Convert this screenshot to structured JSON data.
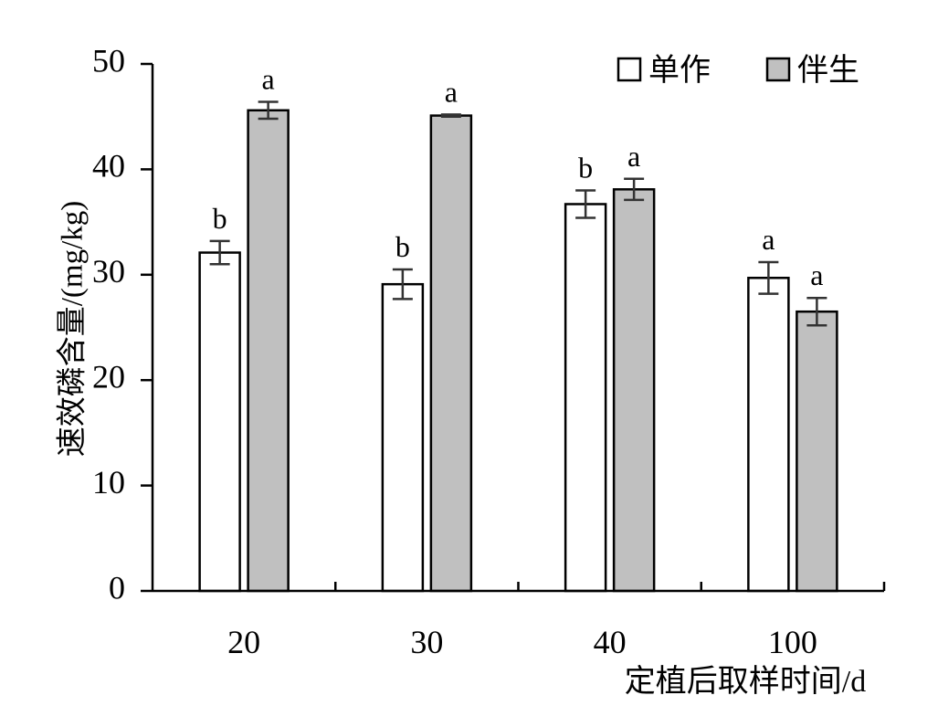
{
  "chart_data": {
    "type": "bar",
    "title": "",
    "xlabel": "定植后取样时间/d",
    "ylabel": "速效磷含量/(mg/kg)",
    "categories": [
      "20",
      "30",
      "40",
      "100"
    ],
    "ylim": [
      0,
      50
    ],
    "yticks": [
      0,
      10,
      20,
      30,
      40,
      50
    ],
    "legend_position": "top-right",
    "grid": false,
    "series": [
      {
        "name": "单作",
        "color": "#ffffff",
        "values": [
          32.1,
          29.1,
          36.7,
          29.7
        ],
        "errors": [
          1.1,
          1.4,
          1.3,
          1.5
        ],
        "labels": [
          "b",
          "b",
          "b",
          "a"
        ]
      },
      {
        "name": "伴生",
        "color": "#c0c0c0",
        "values": [
          45.6,
          45.1,
          38.1,
          26.5
        ],
        "errors": [
          0.8,
          0.1,
          1.0,
          1.3
        ],
        "labels": [
          "a",
          "a",
          "a",
          "a"
        ]
      }
    ]
  }
}
